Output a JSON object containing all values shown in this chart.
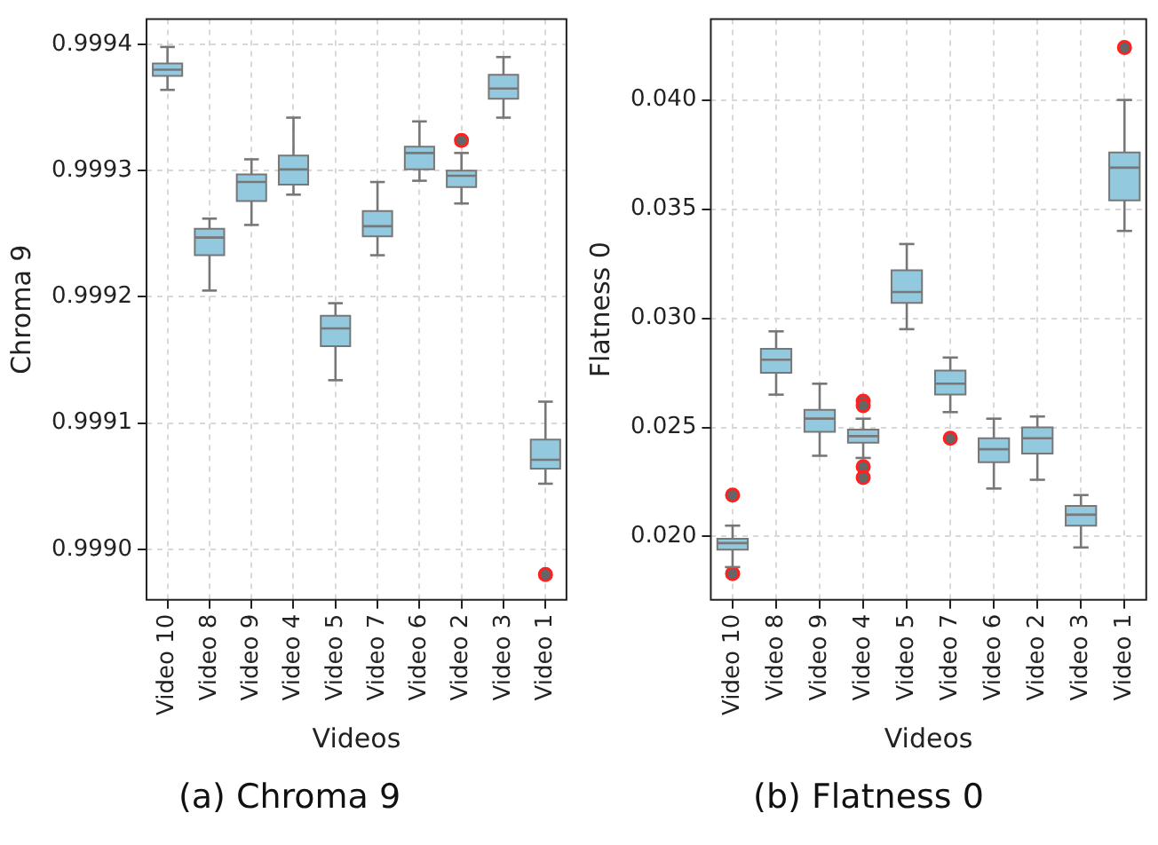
{
  "chart_data": [
    {
      "type": "box",
      "title": "(a) Chroma 9",
      "xlabel": "Videos",
      "ylabel": "Chroma 9",
      "color": "#92c9de",
      "grid": true,
      "categories": [
        "Video 10",
        "Video 8",
        "Video 9",
        "Video 4",
        "Video 5",
        "Video 7",
        "Video 6",
        "Video 2",
        "Video 3",
        "Video 1"
      ],
      "ylim": [
        0.99896,
        0.99942
      ],
      "yticks": [
        {
          "value": 0.999,
          "label": "0.9990"
        },
        0.9991,
        0.9992,
        0.9993,
        0.9994
      ],
      "boxes": [
        {
          "low": 0.999364,
          "q1": 0.999375,
          "median": 0.99938,
          "q3": 0.999385,
          "high": 0.999398
        },
        {
          "low": 0.999205,
          "q1": 0.999233,
          "median": 0.999247,
          "q3": 0.999254,
          "high": 0.999262
        },
        {
          "low": 0.999257,
          "q1": 0.999276,
          "median": 0.999291,
          "q3": 0.999297,
          "high": 0.999309
        },
        {
          "low": 0.999281,
          "q1": 0.999289,
          "median": 0.999301,
          "q3": 0.999312,
          "high": 0.999342
        },
        {
          "low": 0.999134,
          "q1": 0.999161,
          "median": 0.999175,
          "q3": 0.999185,
          "high": 0.999195
        },
        {
          "low": 0.999233,
          "q1": 0.999248,
          "median": 0.999256,
          "q3": 0.999268,
          "high": 0.999291
        },
        {
          "low": 0.999292,
          "q1": 0.999301,
          "median": 0.999314,
          "q3": 0.999319,
          "high": 0.999339
        },
        {
          "low": 0.999274,
          "q1": 0.999287,
          "median": 0.999296,
          "q3": 0.9993,
          "high": 0.999314,
          "outliers": [
            0.999324
          ]
        },
        {
          "low": 0.999342,
          "q1": 0.999357,
          "median": 0.999365,
          "q3": 0.999376,
          "high": 0.99939
        },
        {
          "low": 0.999052,
          "q1": 0.999064,
          "median": 0.999071,
          "q3": 0.999087,
          "high": 0.999117,
          "outliers": [
            0.99898
          ]
        }
      ]
    },
    {
      "type": "box",
      "title": "(b) Flatness 0",
      "xlabel": "Videos",
      "ylabel": "Flatness 0",
      "color": "#92c9de",
      "grid": true,
      "categories": [
        "Video 10",
        "Video 8",
        "Video 9",
        "Video 4",
        "Video 5",
        "Video 7",
        "Video 6",
        "Video 2",
        "Video 3",
        "Video 1"
      ],
      "ylim": [
        0.0171,
        0.0437
      ],
      "yticks": [
        {
          "value": 0.02,
          "label": "0.020"
        },
        {
          "value": 0.025,
          "label": "0.025"
        },
        {
          "value": 0.03,
          "label": "0.030"
        },
        {
          "value": 0.035,
          "label": "0.035"
        },
        {
          "value": 0.04,
          "label": "0.040"
        }
      ],
      "boxes": [
        {
          "low": 0.0186,
          "q1": 0.0194,
          "median": 0.0197,
          "q3": 0.0199,
          "high": 0.0205,
          "outliers": [
            0.0219,
            0.0183
          ]
        },
        {
          "low": 0.0265,
          "q1": 0.0275,
          "median": 0.0281,
          "q3": 0.0286,
          "high": 0.0294
        },
        {
          "low": 0.0237,
          "q1": 0.0248,
          "median": 0.0254,
          "q3": 0.0258,
          "high": 0.027
        },
        {
          "low": 0.0236,
          "q1": 0.0243,
          "median": 0.0246,
          "q3": 0.0249,
          "high": 0.0254,
          "outliers": [
            0.0262,
            0.026,
            0.0232,
            0.0227
          ]
        },
        {
          "low": 0.0295,
          "q1": 0.0307,
          "median": 0.0312,
          "q3": 0.0322,
          "high": 0.0334
        },
        {
          "low": 0.0257,
          "q1": 0.0265,
          "median": 0.027,
          "q3": 0.0276,
          "high": 0.0282,
          "outliers": [
            0.0245
          ]
        },
        {
          "low": 0.0222,
          "q1": 0.0234,
          "median": 0.024,
          "q3": 0.0245,
          "high": 0.0254
        },
        {
          "low": 0.0226,
          "q1": 0.0238,
          "median": 0.0245,
          "q3": 0.025,
          "high": 0.0255
        },
        {
          "low": 0.0195,
          "q1": 0.0205,
          "median": 0.021,
          "q3": 0.0214,
          "high": 0.0219
        },
        {
          "low": 0.034,
          "q1": 0.0354,
          "median": 0.0369,
          "q3": 0.0376,
          "high": 0.04,
          "outliers": [
            0.0424
          ]
        }
      ]
    }
  ]
}
